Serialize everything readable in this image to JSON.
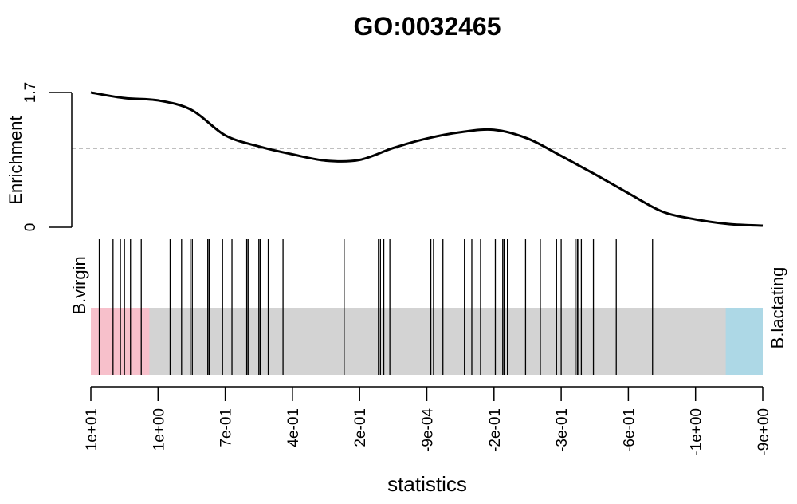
{
  "chart_data": {
    "type": "barcode",
    "title": "GO:0032465",
    "xlabel": "statistics",
    "enrichment": {
      "ylabel": "Enrichment",
      "ylim": [
        0,
        1.7
      ],
      "y_tick_labels": [
        "0",
        "1.7"
      ],
      "reference_level": 1.0,
      "curve": [
        {
          "x": 0.0,
          "y": 1.7
        },
        {
          "x": 0.05,
          "y": 1.63
        },
        {
          "x": 0.1,
          "y": 1.6
        },
        {
          "x": 0.15,
          "y": 1.48
        },
        {
          "x": 0.2,
          "y": 1.16
        },
        {
          "x": 0.25,
          "y": 1.02
        },
        {
          "x": 0.3,
          "y": 0.92
        },
        {
          "x": 0.35,
          "y": 0.84
        },
        {
          "x": 0.4,
          "y": 0.85
        },
        {
          "x": 0.45,
          "y": 1.0
        },
        {
          "x": 0.5,
          "y": 1.12
        },
        {
          "x": 0.55,
          "y": 1.2
        },
        {
          "x": 0.6,
          "y": 1.23
        },
        {
          "x": 0.65,
          "y": 1.12
        },
        {
          "x": 0.7,
          "y": 0.9
        },
        {
          "x": 0.75,
          "y": 0.67
        },
        {
          "x": 0.8,
          "y": 0.43
        },
        {
          "x": 0.85,
          "y": 0.2
        },
        {
          "x": 0.9,
          "y": 0.1
        },
        {
          "x": 0.95,
          "y": 0.04
        },
        {
          "x": 1.0,
          "y": 0.02
        }
      ]
    },
    "barcode": {
      "left_label": "B.virgin",
      "right_label": "B.lactating",
      "left_region": {
        "start": 0.0,
        "end": 0.087,
        "color": "#F7C0CB"
      },
      "right_region": {
        "start": 0.945,
        "end": 1.0,
        "color": "#ADD8E6"
      },
      "middle_color": "#D3D3D3",
      "gene_positions": [
        0.0125,
        0.033,
        0.044,
        0.05,
        0.059,
        0.075,
        0.118,
        0.135,
        0.148,
        0.151,
        0.174,
        0.176,
        0.196,
        0.21,
        0.232,
        0.234,
        0.25,
        0.252,
        0.264,
        0.286,
        0.377,
        0.428,
        0.431,
        0.436,
        0.445,
        0.506,
        0.51,
        0.524,
        0.556,
        0.567,
        0.58,
        0.602,
        0.613,
        0.615,
        0.62,
        0.647,
        0.669,
        0.693,
        0.693,
        0.7,
        0.721,
        0.724,
        0.726,
        0.73,
        0.748,
        0.782,
        0.836
      ]
    },
    "x_ticks": [
      "1e+01",
      "1e+00",
      "7e-01",
      "4e-01",
      "2e-01",
      "-9e-04",
      "-2e-01",
      "-3e-01",
      "-6e-01",
      "-1e+00",
      "-9e+00"
    ]
  },
  "colors": {
    "curve": "#000000",
    "reference_line": "#000000",
    "gene_line": "#000000"
  }
}
